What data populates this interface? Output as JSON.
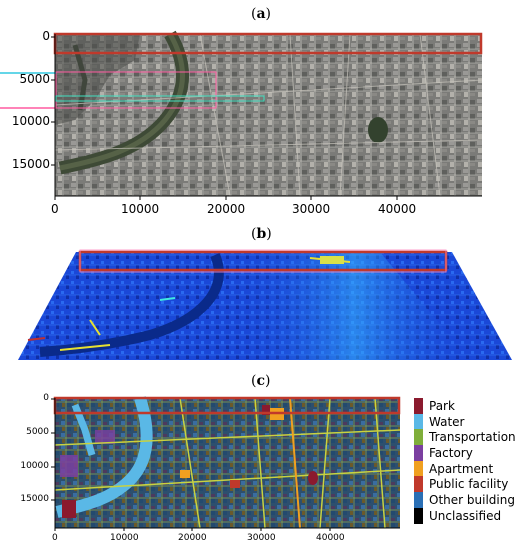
{
  "panels": {
    "a": {
      "label_open": "(",
      "label_letter": "a",
      "label_close": ")"
    },
    "b": {
      "label_open": "(",
      "label_letter": "b",
      "label_close": ")"
    },
    "c": {
      "label_open": "(",
      "label_letter": "c",
      "label_close": ")"
    }
  },
  "panel_a_axes": {
    "y_ticks": [
      "0",
      "5000",
      "10000",
      "15000"
    ],
    "x_ticks": [
      "0",
      "10000",
      "20000",
      "30000",
      "40000"
    ]
  },
  "panel_c_axes": {
    "y_ticks": [
      "0",
      "5000",
      "10000",
      "15000"
    ],
    "x_ticks": [
      "0",
      "10000",
      "20000",
      "30000",
      "40000"
    ]
  },
  "legend": {
    "items": [
      {
        "label": "Park",
        "color": "#8b1a2e"
      },
      {
        "label": "Water",
        "color": "#5ab8e6"
      },
      {
        "label": "Transportation",
        "color": "#7fae3a"
      },
      {
        "label": "Factory",
        "color": "#7b3fa0"
      },
      {
        "label": "Apartment",
        "color": "#f0a020"
      },
      {
        "label": "Public facility",
        "color": "#c0392b"
      },
      {
        "label": "Other building",
        "color": "#2a6fb5"
      },
      {
        "label": "Unclassified",
        "color": "#000000"
      }
    ]
  }
}
